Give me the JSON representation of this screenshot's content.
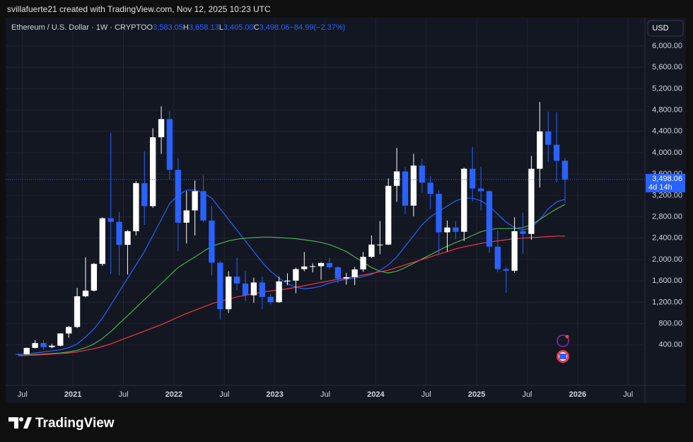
{
  "credit": "svillafuerte21 created with TradingView.com, Nov 12, 2025 10:23 UTC",
  "logo": "TradingView",
  "chart_data": {
    "type": "candlestick",
    "symbol": "Ethereum / U.S. Dollar · 1W · CRYPTO",
    "legend_values": [
      {
        "prefix": "O",
        "value": 3583.05,
        "label": "3,583.05"
      },
      {
        "prefix": "H",
        "value": 3658.13,
        "label": "3,658.13"
      },
      {
        "prefix": "L",
        "value": 3405.0,
        "label": "3,405.00"
      },
      {
        "prefix": "C",
        "value": 3498.06,
        "label": "3,498.06"
      }
    ],
    "change": {
      "value": -84.99,
      "label": "−84.99"
    },
    "change_pct": {
      "value": -2.37,
      "label": "(−2.37%)"
    },
    "currency": "USD",
    "last_price": {
      "value": 3498.06,
      "label": "3,498.06"
    },
    "countdown": "4d 14h",
    "up_color": "#ffffff",
    "down_color": "#2962ff",
    "x": [
      "2020-06",
      "2020-07",
      "2020-08",
      "2020-09",
      "2020-10",
      "2020-11",
      "2020-12",
      "2021-01",
      "2021-02",
      "2021-03",
      "2021-04",
      "2021-05",
      "2021-06",
      "2021-07",
      "2021-08",
      "2021-09",
      "2021-10",
      "2021-11",
      "2021-12",
      "2022-01",
      "2022-02",
      "2022-03",
      "2022-04",
      "2022-05",
      "2022-06",
      "2022-07",
      "2022-08",
      "2022-09",
      "2022-10",
      "2022-11",
      "2022-12",
      "2023-01",
      "2023-02",
      "2023-03",
      "2023-04",
      "2023-05",
      "2023-06",
      "2023-07",
      "2023-08",
      "2023-09",
      "2023-10",
      "2023-11",
      "2023-12",
      "2024-01",
      "2024-02",
      "2024-03",
      "2024-04",
      "2024-05",
      "2024-06",
      "2024-07",
      "2024-08",
      "2024-09",
      "2024-10",
      "2024-11",
      "2024-12",
      "2025-01",
      "2025-02",
      "2025-03",
      "2025-04",
      "2025-05",
      "2025-06",
      "2025-07",
      "2025-08",
      "2025-09",
      "2025-10",
      "2025-11"
    ],
    "open": [
      230,
      226,
      345,
      435,
      360,
      386,
      615,
      737,
      1312,
      1418,
      1918,
      2773,
      2706,
      2275,
      2530,
      3430,
      3000,
      4290,
      4630,
      3680,
      2690,
      2920,
      3280,
      2730,
      1940,
      1070,
      1680,
      1550,
      1330,
      1570,
      1300,
      1200,
      1590,
      1605,
      1820,
      1870,
      1875,
      1935,
      1855,
      1645,
      1670,
      1815,
      2050,
      2280,
      2280,
      3380,
      3650,
      3010,
      3760,
      3440,
      3230,
      2510,
      2600,
      2520,
      3700,
      3330,
      3280,
      2240,
      1820,
      1790,
      2530,
      2480,
      3700,
      4400,
      4150,
      3850
    ],
    "high": [
      250,
      350,
      490,
      490,
      420,
      620,
      755,
      1470,
      2040,
      1940,
      2790,
      4370,
      2890,
      2550,
      3470,
      4030,
      4460,
      4870,
      4780,
      3900,
      3280,
      3480,
      3580,
      3000,
      1970,
      1780,
      2030,
      1790,
      1660,
      1680,
      1350,
      1680,
      1740,
      1850,
      2140,
      1930,
      1950,
      2030,
      1870,
      1750,
      1860,
      2140,
      2450,
      2720,
      3520,
      4090,
      3730,
      3980,
      3890,
      3560,
      3300,
      2730,
      2720,
      3720,
      4110,
      3740,
      3300,
      2550,
      1860,
      2790,
      2880,
      3940,
      4950,
      4770,
      4760,
      3900
    ],
    "low": [
      215,
      225,
      335,
      310,
      335,
      375,
      535,
      715,
      1290,
      1400,
      1880,
      1730,
      1700,
      1720,
      2450,
      2650,
      2970,
      3980,
      3500,
      2160,
      2300,
      2450,
      2700,
      1700,
      880,
      1000,
      1420,
      1220,
      1190,
      1070,
      1160,
      1190,
      1520,
      1370,
      1780,
      1760,
      1620,
      1820,
      1550,
      1530,
      1520,
      1770,
      2030,
      2100,
      2270,
      3080,
      2850,
      2810,
      3250,
      2950,
      2100,
      2150,
      2380,
      2350,
      3090,
      2920,
      2120,
      1760,
      1380,
      1750,
      2110,
      2370,
      3350,
      3820,
      3440,
      3060
    ],
    "close": [
      226,
      345,
      435,
      360,
      386,
      615,
      737,
      1312,
      1418,
      1918,
      2773,
      2706,
      2275,
      2530,
      3430,
      3000,
      4290,
      4630,
      3680,
      2690,
      2920,
      3280,
      2730,
      1940,
      1070,
      1680,
      1550,
      1330,
      1570,
      1300,
      1200,
      1590,
      1605,
      1820,
      1870,
      1875,
      1935,
      1855,
      1645,
      1670,
      1815,
      2050,
      2280,
      2280,
      3380,
      3650,
      3010,
      3760,
      3440,
      3230,
      2510,
      2600,
      2520,
      3700,
      3330,
      3280,
      2240,
      1820,
      1790,
      2530,
      2480,
      3700,
      4400,
      4150,
      3850,
      3498.06
    ],
    "lines": [
      {
        "color": "#2962ff",
        "values": [
          220,
          230,
          250,
          270,
          290,
          310,
          350,
          420,
          550,
          700,
          900,
          1150,
          1400,
          1650,
          1900,
          2150,
          2450,
          2750,
          3050,
          3200,
          3300,
          3300,
          3250,
          3150,
          2950,
          2750,
          2550,
          2350,
          2150,
          1950,
          1780,
          1650,
          1550,
          1480,
          1450,
          1470,
          1500,
          1560,
          1600,
          1630,
          1650,
          1680,
          1720,
          1800,
          1900,
          2050,
          2250,
          2450,
          2650,
          2800,
          2900,
          3000,
          3100,
          3150,
          3150,
          3100,
          3000,
          2850,
          2700,
          2600,
          2550,
          2600,
          2750,
          2950,
          3080,
          3130
        ]
      },
      {
        "color": "#4caf50",
        "values": [
          200,
          210,
          220,
          230,
          240,
          250,
          270,
          300,
          350,
          420,
          520,
          650,
          800,
          950,
          1100,
          1250,
          1400,
          1550,
          1700,
          1850,
          1950,
          2050,
          2150,
          2250,
          2300,
          2350,
          2380,
          2400,
          2410,
          2420,
          2420,
          2410,
          2400,
          2390,
          2370,
          2350,
          2320,
          2280,
          2220,
          2150,
          2050,
          1950,
          1850,
          1780,
          1750,
          1780,
          1850,
          1930,
          2010,
          2090,
          2170,
          2250,
          2320,
          2380,
          2450,
          2520,
          2560,
          2580,
          2580,
          2580,
          2600,
          2650,
          2750,
          2850,
          2950,
          3030
        ]
      },
      {
        "color": "#f23645",
        "values": [
          200,
          205,
          210,
          220,
          230,
          240,
          250,
          270,
          300,
          330,
          370,
          420,
          480,
          540,
          600,
          660,
          720,
          780,
          850,
          920,
          990,
          1050,
          1110,
          1170,
          1220,
          1260,
          1300,
          1330,
          1360,
          1390,
          1410,
          1430,
          1450,
          1480,
          1510,
          1540,
          1570,
          1600,
          1630,
          1650,
          1680,
          1710,
          1740,
          1770,
          1800,
          1850,
          1900,
          1950,
          2000,
          2050,
          2100,
          2150,
          2200,
          2240,
          2270,
          2300,
          2330,
          2350,
          2370,
          2390,
          2400,
          2410,
          2420,
          2430,
          2440,
          2440
        ]
      }
    ],
    "xlim": [
      "2020-05",
      "2026-09"
    ],
    "xticks": [
      {
        "value": "2020-07",
        "label": "Jul"
      },
      {
        "value": "2021-01",
        "label": "2021"
      },
      {
        "value": "2021-07",
        "label": "Jul"
      },
      {
        "value": "2022-01",
        "label": "2022"
      },
      {
        "value": "2022-07",
        "label": "Jul"
      },
      {
        "value": "2023-01",
        "label": "2023"
      },
      {
        "value": "2023-07",
        "label": "Jul"
      },
      {
        "value": "2024-01",
        "label": "2024"
      },
      {
        "value": "2024-07",
        "label": "Jul"
      },
      {
        "value": "2025-01",
        "label": "2025"
      },
      {
        "value": "2025-07",
        "label": "Jul"
      },
      {
        "value": "2026-01",
        "label": "2026"
      },
      {
        "value": "2026-07",
        "label": "Jul"
      }
    ],
    "ylim": [
      -358,
      6530
    ],
    "yticks": [
      {
        "value": 400,
        "label": "400.00"
      },
      {
        "value": 800,
        "label": "800.00"
      },
      {
        "value": 1200,
        "label": "1,200.00"
      },
      {
        "value": 1600,
        "label": "1,600.00"
      },
      {
        "value": 2000,
        "label": "2,000.00"
      },
      {
        "value": 2400,
        "label": "2,400.00"
      },
      {
        "value": 2800,
        "label": "2,800.00"
      },
      {
        "value": 3200,
        "label": "3,200.00"
      },
      {
        "value": 3600,
        "label": "3,600.00"
      },
      {
        "value": 4000,
        "label": "4,000.00"
      },
      {
        "value": 4400,
        "label": "4,400.00"
      },
      {
        "value": 4800,
        "label": "4,800.00"
      },
      {
        "value": 5200,
        "label": "5,200.00"
      },
      {
        "value": 5600,
        "label": "5,600.00"
      },
      {
        "value": 6000,
        "label": "6,000.00"
      }
    ],
    "grid": true
  }
}
